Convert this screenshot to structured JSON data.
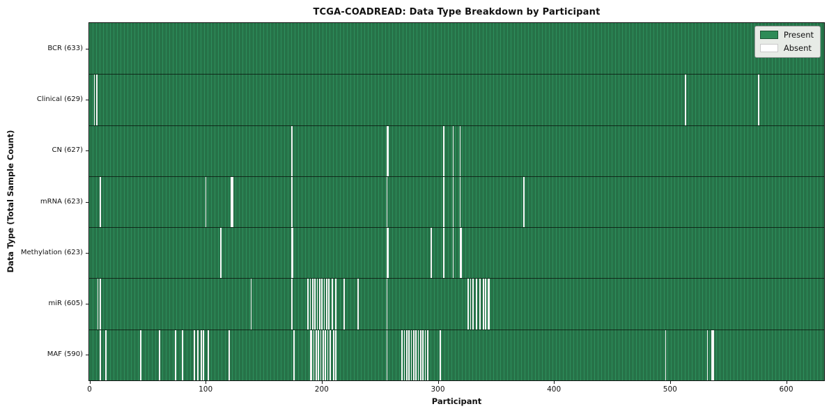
{
  "chart_data": {
    "type": "heatmap",
    "title": "TCGA-COADREAD: Data Type Breakdown by Participant",
    "xlabel": "Participant",
    "ylabel": "Data Type (Total Sample Count)",
    "x_ticks": [
      0,
      100,
      200,
      300,
      400,
      500,
      600
    ],
    "x_max": 633,
    "total_participants": 633,
    "grid": false,
    "legend": {
      "position": "upper right",
      "items": [
        {
          "label": "Present",
          "color": "#2e8b57"
        },
        {
          "label": "Absent",
          "color": "#ffffff"
        }
      ]
    },
    "colors": {
      "present": "#2e8f5c",
      "present_edge": "#1d5434",
      "absent": "#f6f6f6"
    },
    "rows": [
      {
        "label": "BCR (633)",
        "data_type": "BCR",
        "sample_count": 633,
        "absent_participants": []
      },
      {
        "label": "Clinical (629)",
        "data_type": "Clinical",
        "sample_count": 629,
        "absent_participants": [
          4,
          6,
          513,
          576
        ]
      },
      {
        "label": "CN (627)",
        "data_type": "CN",
        "sample_count": 627,
        "absent_participants": [
          174,
          256,
          257,
          305,
          313,
          319
        ]
      },
      {
        "label": "mRNA (623)",
        "data_type": "mRNA",
        "sample_count": 623,
        "absent_participants": [
          9,
          100,
          122,
          123,
          174,
          256,
          305,
          313,
          319,
          374
        ]
      },
      {
        "label": "Methylation (623)",
        "data_type": "Methylation",
        "sample_count": 623,
        "absent_participants": [
          113,
          174,
          175,
          256,
          257,
          294,
          305,
          313,
          319,
          320
        ]
      },
      {
        "label": "miR (605)",
        "data_type": "miR",
        "sample_count": 605,
        "absent_participants": [
          7,
          9,
          139,
          174,
          188,
          190,
          192,
          194,
          196,
          198,
          200,
          202,
          204,
          206,
          209,
          212,
          219,
          231,
          256,
          326,
          328,
          330,
          333,
          336,
          339,
          341,
          343,
          344
        ]
      },
      {
        "label": "MAF (590)",
        "data_type": "MAF",
        "sample_count": 590,
        "absent_participants": [
          9,
          14,
          44,
          60,
          74,
          80,
          90,
          93,
          96,
          98,
          102,
          120,
          176,
          190,
          191,
          193,
          195,
          197,
          199,
          201,
          203,
          205,
          207,
          210,
          212,
          256,
          269,
          271,
          273,
          275,
          277,
          279,
          281,
          283,
          285,
          287,
          289,
          291,
          302,
          496,
          532,
          536,
          537
        ]
      }
    ]
  }
}
